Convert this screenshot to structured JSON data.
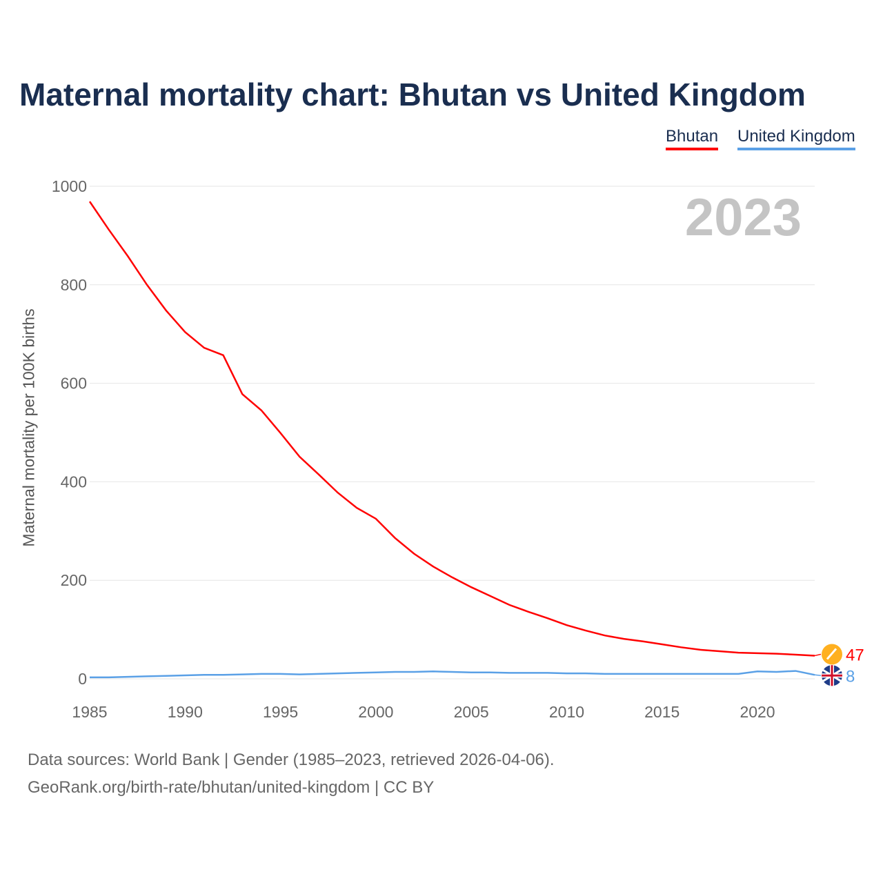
{
  "chart_data": {
    "type": "line",
    "title": "Maternal mortality chart: Bhutan vs United Kingdom",
    "ylabel": "Maternal mortality per 100K births",
    "xlabel": "",
    "ylim": [
      0,
      1000
    ],
    "xlim": [
      1985,
      2023
    ],
    "yticks": [
      0,
      200,
      400,
      600,
      800,
      1000
    ],
    "xticks": [
      1985,
      1990,
      1995,
      2000,
      2005,
      2010,
      2015,
      2020
    ],
    "grid": true,
    "legend_placement": "top-right",
    "year_label": "2023",
    "x": [
      1985,
      1986,
      1987,
      1988,
      1989,
      1990,
      1991,
      1992,
      1993,
      1994,
      1995,
      1996,
      1997,
      1998,
      1999,
      2000,
      2001,
      2002,
      2003,
      2004,
      2005,
      2006,
      2007,
      2008,
      2009,
      2010,
      2011,
      2012,
      2013,
      2014,
      2015,
      2016,
      2017,
      2018,
      2019,
      2020,
      2021,
      2022,
      2023
    ],
    "series": [
      {
        "name": "Bhutan",
        "color": "#ff0000",
        "end_label": "47",
        "values": [
          969,
          912,
          858,
          800,
          748,
          704,
          672,
          657,
          578,
          545,
          499,
          451,
          415,
          378,
          347,
          325,
          286,
          254,
          228,
          206,
          186,
          168,
          150,
          136,
          123,
          109,
          98,
          88,
          81,
          76,
          70,
          64,
          59,
          56,
          53,
          52,
          51,
          49,
          47
        ]
      },
      {
        "name": "United Kingdom",
        "color": "#5aa0e6",
        "end_label": "8",
        "values": [
          3,
          3,
          4,
          5,
          6,
          7,
          8,
          8,
          9,
          10,
          10,
          9,
          10,
          11,
          12,
          13,
          14,
          14,
          15,
          14,
          13,
          13,
          12,
          12,
          12,
          11,
          11,
          10,
          10,
          10,
          10,
          10,
          10,
          10,
          10,
          15,
          14,
          16,
          8
        ]
      }
    ]
  },
  "footer": {
    "line1": "Data sources: World Bank | Gender (1985–2023, retrieved 2026-04-06).",
    "line2": "GeoRank.org/birth-rate/bhutan/united-kingdom | CC BY"
  }
}
